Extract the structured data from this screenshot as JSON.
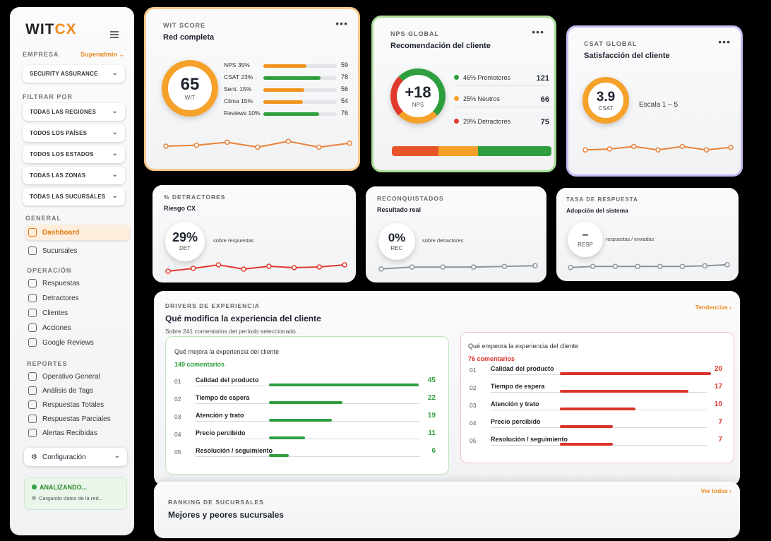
{
  "brand": {
    "logo_main": "WIT",
    "logo_accent": "CX"
  },
  "sidebar": {
    "empresa_label": "EMPRESA",
    "role": "Superadmin",
    "company_select": "SECURITY ASSURANCE",
    "filter_label": "FILTRAR POR",
    "filters": [
      "TODAS LAS REGIONES",
      "TODOS LOS PAÍSES",
      "TODOS LOS ESTADOS",
      "TODAS LAS ZONAS",
      "TODAS LAS SUCURSALES"
    ],
    "general_label": "GENERAL",
    "general_items": [
      "Dashboard",
      "Sucursales"
    ],
    "operacion_label": "OPERACIÓN",
    "operacion_items": [
      "Respuestas",
      "Detractores",
      "Clientes",
      "Acciones",
      "Google Reviews"
    ],
    "reportes_label": "REPORTES",
    "reportes_items": [
      "Operativo General",
      "Análisis de Tags",
      "Respuestas Totales",
      "Respuestas Parciales",
      "Alertas Recibidas"
    ],
    "config_label": "Configuración",
    "status_title": "ANALIZANDO...",
    "status_sub": "Cargando datos de la red..."
  },
  "wit": {
    "label": "WIT SCORE",
    "title": "Red completa",
    "value": "65",
    "unit": "WIT",
    "colors": {
      "ring": "#f5a12a"
    },
    "bars": [
      {
        "label": "NPS 35%",
        "value": "59",
        "pct": 0.59,
        "color": "#f0941f"
      },
      {
        "label": "CSAT 23%",
        "value": "78",
        "pct": 0.78,
        "color": "#2e9e3e"
      },
      {
        "label": "Sent. 15%",
        "value": "56",
        "pct": 0.56,
        "color": "#f0941f"
      },
      {
        "label": "Clima 15%",
        "value": "54",
        "pct": 0.54,
        "color": "#f0941f"
      },
      {
        "label": "Reviews 10%",
        "value": "76",
        "pct": 0.76,
        "color": "#2e9e3e"
      }
    ],
    "trend_color": "#e8823a",
    "trend": [
      0.5,
      0.45,
      0.3,
      0.55,
      0.25,
      0.55,
      0.35
    ]
  },
  "nps": {
    "label": "NPS GLOBAL",
    "title": "Recomendación del cliente",
    "value": "+18",
    "unit": "NPS",
    "legend": [
      {
        "label": "46% Promotores",
        "value": "121",
        "color": "#2e9e3e"
      },
      {
        "label": "25% Neutros",
        "value": "66",
        "color": "#f5a12a"
      },
      {
        "label": "29% Detractores",
        "value": "75",
        "color": "#e0392d"
      }
    ],
    "stack": [
      {
        "pct": 0.29,
        "color": "#e8552b"
      },
      {
        "pct": 0.25,
        "color": "#f5a12a"
      },
      {
        "pct": 0.46,
        "color": "#2e9e3e"
      }
    ]
  },
  "csat": {
    "label": "CSAT GLOBAL",
    "title": "Satisfacción del cliente",
    "value": "3.9",
    "unit": "CSAT",
    "scale": "Escala 1 – 5",
    "trend_color": "#e8823a",
    "trend": [
      0.55,
      0.5,
      0.35,
      0.55,
      0.35,
      0.55,
      0.4
    ]
  },
  "detractores": {
    "label": "% DETRACTORES",
    "title": "Riesgo CX",
    "value": "29%",
    "unit": "DET",
    "sub": "sobre respuestas",
    "trend_color": "#e0392d",
    "trend": [
      0.6,
      0.4,
      0.15,
      0.45,
      0.25,
      0.35,
      0.3,
      0.15
    ]
  },
  "reconquistados": {
    "label": "RECONQUISTADOS",
    "title": "Resultado real",
    "value": "0%",
    "unit": "REC",
    "sub": "sobre detractores",
    "trend_color": "#8e949e",
    "trend": [
      0.6,
      0.45,
      0.45,
      0.45,
      0.4,
      0.35
    ]
  },
  "tasa": {
    "label": "TASA DE RESPUESTA",
    "title": "Adopción del sistema",
    "value": "–",
    "unit": "RESP",
    "sub": "respuestas / enviadas",
    "trend_color": "#8e949e",
    "trend": [
      0.55,
      0.45,
      0.45,
      0.45,
      0.45,
      0.45,
      0.4,
      0.3
    ]
  },
  "drivers": {
    "label": "DRIVERS DE EXPERIENCIA",
    "title": "Qué modifica la experiencia del cliente",
    "subtitle": "Sobre 241 comentarios del período seleccionado.",
    "link": "Tendencias ›",
    "positive": {
      "title": "Qué mejora la experiencia del cliente",
      "count": "149 comentarios",
      "color": "#2e9e3e",
      "rows": [
        {
          "n": "01",
          "label": "Calidad del producto",
          "value": "45",
          "pct": 1.0
        },
        {
          "n": "02",
          "label": "Tiempo de espera",
          "value": "22",
          "pct": 0.49
        },
        {
          "n": "03",
          "label": "Atención y trato",
          "value": "19",
          "pct": 0.42
        },
        {
          "n": "04",
          "label": "Precio percibido",
          "value": "11",
          "pct": 0.24
        },
        {
          "n": "05",
          "label": "Resolución / seguimiento",
          "value": "6",
          "pct": 0.13
        }
      ]
    },
    "negative": {
      "title": "Qué empeora la experiencia del cliente",
      "count": "76 comentarios",
      "color": "#d9332a",
      "rows": [
        {
          "n": "01",
          "label": "Calidad del producto",
          "value": "20",
          "pct": 1.0
        },
        {
          "n": "02",
          "label": "Tiempo de espera",
          "value": "17",
          "pct": 0.85
        },
        {
          "n": "03",
          "label": "Atención y trato",
          "value": "10",
          "pct": 0.5
        },
        {
          "n": "04",
          "label": "Precio percibido",
          "value": "7",
          "pct": 0.35
        },
        {
          "n": "05",
          "label": "Resolución / seguimiento",
          "value": "7",
          "pct": 0.35
        }
      ]
    }
  },
  "ranking": {
    "label": "RANKING DE SUCURSALES",
    "title": "Mejores y peores sucursales",
    "link": "Ver todas ›"
  }
}
